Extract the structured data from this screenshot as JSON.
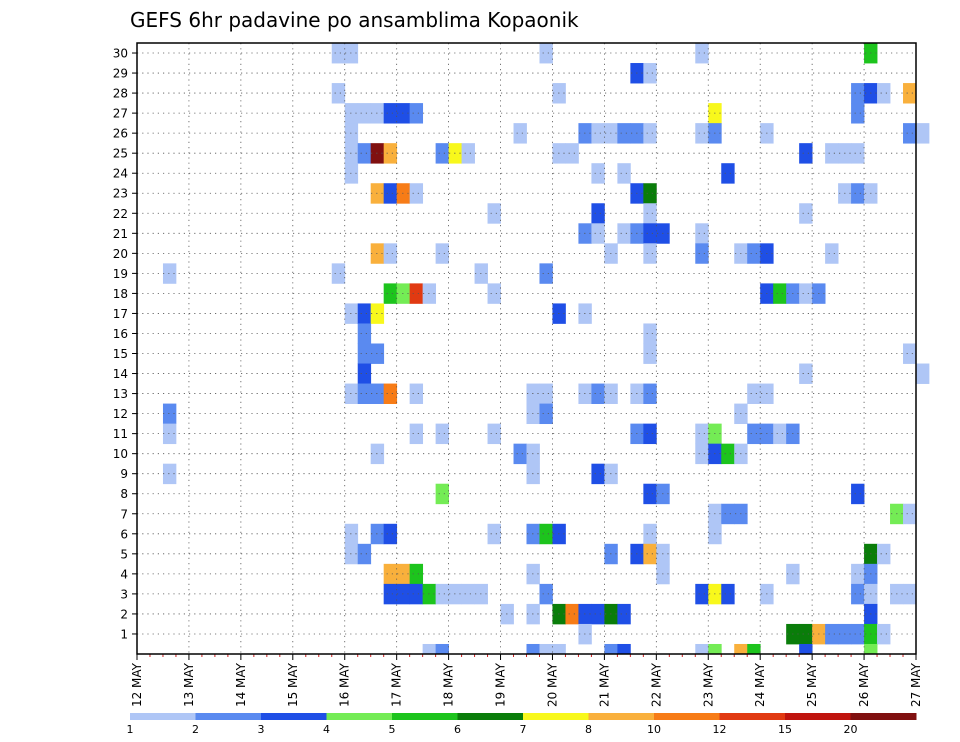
{
  "chart_data": {
    "type": "heatmap",
    "title": "GEFS 6hr padavine po ansamblima Kopaonik",
    "xlabel": "",
    "ylabel": "",
    "x_ticks": [
      "12 MAY",
      "13 MAY",
      "14 MAY",
      "15 MAY",
      "16 MAY",
      "17 MAY",
      "18 MAY",
      "19 MAY",
      "20 MAY",
      "21 MAY",
      "22 MAY",
      "23 MAY",
      "24 MAY",
      "25 MAY",
      "26 MAY",
      "27 MAY"
    ],
    "y_ticks": [
      1,
      2,
      3,
      4,
      5,
      6,
      7,
      8,
      9,
      10,
      11,
      12,
      13,
      14,
      15,
      16,
      17,
      18,
      19,
      20,
      21,
      22,
      23,
      24,
      25,
      26,
      27,
      28,
      29,
      30
    ],
    "ylim": [
      0,
      30
    ],
    "time_steps_per_day": 4,
    "grid": true,
    "colorbar": {
      "position": "bottom",
      "labels": [
        "1",
        "2",
        "3",
        "4",
        "5",
        "6",
        "7",
        "8",
        "10",
        "12",
        "15",
        "20"
      ],
      "colors": [
        "#afc6f6",
        "#5a8af0",
        "#1f4fe6",
        "#74ec55",
        "#1dc41d",
        "#0a7d0a",
        "#f8f81c",
        "#f9b03c",
        "#f77c17",
        "#e13a12",
        "#c0140e",
        "#801010"
      ]
    },
    "levels": {
      "1": "#afc6f6",
      "2": "#5a8af0",
      "3": "#1f4fe6",
      "4": "#74ec55",
      "5": "#1dc41d",
      "6": "#0a7d0a",
      "7": "#f8f81c",
      "8": "#f9b03c",
      "10": "#f77c17",
      "12": "#e13a12",
      "15": "#c0140e",
      "20": "#801010"
    },
    "cells": [
      {
        "t": 15,
        "m": 30,
        "v": 1
      },
      {
        "t": 16,
        "m": 30,
        "v": 1
      },
      {
        "t": 31,
        "m": 30,
        "v": 1
      },
      {
        "t": 43,
        "m": 30,
        "v": 1
      },
      {
        "t": 56,
        "m": 30,
        "v": 5
      },
      {
        "t": 38,
        "m": 29,
        "v": 3
      },
      {
        "t": 39,
        "m": 29,
        "v": 1
      },
      {
        "t": 15,
        "m": 28,
        "v": 1
      },
      {
        "t": 32,
        "m": 28,
        "v": 1
      },
      {
        "t": 55,
        "m": 28,
        "v": 2
      },
      {
        "t": 56,
        "m": 28,
        "v": 3
      },
      {
        "t": 57,
        "m": 28,
        "v": 1
      },
      {
        "t": 59,
        "m": 28,
        "v": 8
      },
      {
        "t": 16,
        "m": 27,
        "v": 1
      },
      {
        "t": 17,
        "m": 27,
        "v": 1
      },
      {
        "t": 18,
        "m": 27,
        "v": 1
      },
      {
        "t": 19,
        "m": 27,
        "v": 3
      },
      {
        "t": 20,
        "m": 27,
        "v": 3
      },
      {
        "t": 21,
        "m": 27,
        "v": 2
      },
      {
        "t": 44,
        "m": 27,
        "v": 7
      },
      {
        "t": 55,
        "m": 27,
        "v": 2
      },
      {
        "t": 16,
        "m": 26,
        "v": 1
      },
      {
        "t": 29,
        "m": 26,
        "v": 1
      },
      {
        "t": 34,
        "m": 26,
        "v": 2
      },
      {
        "t": 35,
        "m": 26,
        "v": 1
      },
      {
        "t": 36,
        "m": 26,
        "v": 1
      },
      {
        "t": 37,
        "m": 26,
        "v": 2
      },
      {
        "t": 38,
        "m": 26,
        "v": 2
      },
      {
        "t": 39,
        "m": 26,
        "v": 1
      },
      {
        "t": 43,
        "m": 26,
        "v": 1
      },
      {
        "t": 44,
        "m": 26,
        "v": 2
      },
      {
        "t": 48,
        "m": 26,
        "v": 1
      },
      {
        "t": 59,
        "m": 26,
        "v": 2
      },
      {
        "t": 60,
        "m": 26,
        "v": 1
      },
      {
        "t": 16,
        "m": 25,
        "v": 1
      },
      {
        "t": 17,
        "m": 25,
        "v": 2
      },
      {
        "t": 18,
        "m": 25,
        "v": 20
      },
      {
        "t": 19,
        "m": 25,
        "v": 8
      },
      {
        "t": 23,
        "m": 25,
        "v": 2
      },
      {
        "t": 24,
        "m": 25,
        "v": 7
      },
      {
        "t": 25,
        "m": 25,
        "v": 1
      },
      {
        "t": 32,
        "m": 25,
        "v": 1
      },
      {
        "t": 33,
        "m": 25,
        "v": 1
      },
      {
        "t": 51,
        "m": 25,
        "v": 3
      },
      {
        "t": 53,
        "m": 25,
        "v": 1
      },
      {
        "t": 54,
        "m": 25,
        "v": 1
      },
      {
        "t": 55,
        "m": 25,
        "v": 1
      },
      {
        "t": 16,
        "m": 24,
        "v": 1
      },
      {
        "t": 35,
        "m": 24,
        "v": 1
      },
      {
        "t": 37,
        "m": 24,
        "v": 1
      },
      {
        "t": 45,
        "m": 24,
        "v": 3
      },
      {
        "t": 18,
        "m": 23,
        "v": 8
      },
      {
        "t": 19,
        "m": 23,
        "v": 3
      },
      {
        "t": 20,
        "m": 23,
        "v": 10
      },
      {
        "t": 21,
        "m": 23,
        "v": 1
      },
      {
        "t": 38,
        "m": 23,
        "v": 3
      },
      {
        "t": 39,
        "m": 23,
        "v": 6
      },
      {
        "t": 54,
        "m": 23,
        "v": 1
      },
      {
        "t": 55,
        "m": 23,
        "v": 2
      },
      {
        "t": 56,
        "m": 23,
        "v": 1
      },
      {
        "t": 27,
        "m": 22,
        "v": 1
      },
      {
        "t": 35,
        "m": 22,
        "v": 3
      },
      {
        "t": 39,
        "m": 22,
        "v": 1
      },
      {
        "t": 51,
        "m": 22,
        "v": 1
      },
      {
        "t": 34,
        "m": 21,
        "v": 2
      },
      {
        "t": 35,
        "m": 21,
        "v": 1
      },
      {
        "t": 37,
        "m": 21,
        "v": 1
      },
      {
        "t": 38,
        "m": 21,
        "v": 2
      },
      {
        "t": 39,
        "m": 21,
        "v": 3
      },
      {
        "t": 40,
        "m": 21,
        "v": 3
      },
      {
        "t": 43,
        "m": 21,
        "v": 1
      },
      {
        "t": 18,
        "m": 20,
        "v": 8
      },
      {
        "t": 19,
        "m": 20,
        "v": 1
      },
      {
        "t": 23,
        "m": 20,
        "v": 1
      },
      {
        "t": 36,
        "m": 20,
        "v": 1
      },
      {
        "t": 39,
        "m": 20,
        "v": 1
      },
      {
        "t": 43,
        "m": 20,
        "v": 2
      },
      {
        "t": 46,
        "m": 20,
        "v": 1
      },
      {
        "t": 47,
        "m": 20,
        "v": 2
      },
      {
        "t": 48,
        "m": 20,
        "v": 3
      },
      {
        "t": 53,
        "m": 20,
        "v": 1
      },
      {
        "t": 2,
        "m": 19,
        "v": 1
      },
      {
        "t": 15,
        "m": 19,
        "v": 1
      },
      {
        "t": 26,
        "m": 19,
        "v": 1
      },
      {
        "t": 31,
        "m": 19,
        "v": 2
      },
      {
        "t": 19,
        "m": 18,
        "v": 5
      },
      {
        "t": 20,
        "m": 18,
        "v": 4
      },
      {
        "t": 21,
        "m": 18,
        "v": 12
      },
      {
        "t": 22,
        "m": 18,
        "v": 1
      },
      {
        "t": 27,
        "m": 18,
        "v": 1
      },
      {
        "t": 48,
        "m": 18,
        "v": 3
      },
      {
        "t": 49,
        "m": 18,
        "v": 5
      },
      {
        "t": 50,
        "m": 18,
        "v": 2
      },
      {
        "t": 51,
        "m": 18,
        "v": 1
      },
      {
        "t": 52,
        "m": 18,
        "v": 2
      },
      {
        "t": 16,
        "m": 17,
        "v": 1
      },
      {
        "t": 17,
        "m": 17,
        "v": 3
      },
      {
        "t": 18,
        "m": 17,
        "v": 7
      },
      {
        "t": 32,
        "m": 17,
        "v": 3
      },
      {
        "t": 34,
        "m": 17,
        "v": 1
      },
      {
        "t": 17,
        "m": 16,
        "v": 2
      },
      {
        "t": 39,
        "m": 16,
        "v": 1
      },
      {
        "t": 17,
        "m": 15,
        "v": 2
      },
      {
        "t": 18,
        "m": 15,
        "v": 2
      },
      {
        "t": 39,
        "m": 15,
        "v": 1
      },
      {
        "t": 59,
        "m": 15,
        "v": 1
      },
      {
        "t": 17,
        "m": 14,
        "v": 3
      },
      {
        "t": 51,
        "m": 14,
        "v": 1
      },
      {
        "t": 60,
        "m": 14,
        "v": 1
      },
      {
        "t": 16,
        "m": 13,
        "v": 1
      },
      {
        "t": 17,
        "m": 13,
        "v": 2
      },
      {
        "t": 18,
        "m": 13,
        "v": 2
      },
      {
        "t": 19,
        "m": 13,
        "v": 10
      },
      {
        "t": 21,
        "m": 13,
        "v": 1
      },
      {
        "t": 30,
        "m": 13,
        "v": 1
      },
      {
        "t": 31,
        "m": 13,
        "v": 1
      },
      {
        "t": 34,
        "m": 13,
        "v": 1
      },
      {
        "t": 35,
        "m": 13,
        "v": 2
      },
      {
        "t": 36,
        "m": 13,
        "v": 1
      },
      {
        "t": 38,
        "m": 13,
        "v": 1
      },
      {
        "t": 39,
        "m": 13,
        "v": 2
      },
      {
        "t": 47,
        "m": 13,
        "v": 1
      },
      {
        "t": 48,
        "m": 13,
        "v": 1
      },
      {
        "t": 2,
        "m": 12,
        "v": 2
      },
      {
        "t": 30,
        "m": 12,
        "v": 1
      },
      {
        "t": 31,
        "m": 12,
        "v": 2
      },
      {
        "t": 46,
        "m": 12,
        "v": 1
      },
      {
        "t": 2,
        "m": 11,
        "v": 1
      },
      {
        "t": 21,
        "m": 11,
        "v": 1
      },
      {
        "t": 23,
        "m": 11,
        "v": 1
      },
      {
        "t": 27,
        "m": 11,
        "v": 1
      },
      {
        "t": 38,
        "m": 11,
        "v": 2
      },
      {
        "t": 39,
        "m": 11,
        "v": 3
      },
      {
        "t": 43,
        "m": 11,
        "v": 1
      },
      {
        "t": 44,
        "m": 11,
        "v": 4
      },
      {
        "t": 47,
        "m": 11,
        "v": 2
      },
      {
        "t": 48,
        "m": 11,
        "v": 2
      },
      {
        "t": 49,
        "m": 11,
        "v": 1
      },
      {
        "t": 50,
        "m": 11,
        "v": 2
      },
      {
        "t": 18,
        "m": 10,
        "v": 1
      },
      {
        "t": 29,
        "m": 10,
        "v": 2
      },
      {
        "t": 30,
        "m": 10,
        "v": 1
      },
      {
        "t": 43,
        "m": 10,
        "v": 1
      },
      {
        "t": 44,
        "m": 10,
        "v": 3
      },
      {
        "t": 45,
        "m": 10,
        "v": 5
      },
      {
        "t": 46,
        "m": 10,
        "v": 1
      },
      {
        "t": 2,
        "m": 9,
        "v": 1
      },
      {
        "t": 30,
        "m": 9,
        "v": 1
      },
      {
        "t": 35,
        "m": 9,
        "v": 3
      },
      {
        "t": 36,
        "m": 9,
        "v": 1
      },
      {
        "t": 23,
        "m": 8,
        "v": 4
      },
      {
        "t": 39,
        "m": 8,
        "v": 3
      },
      {
        "t": 40,
        "m": 8,
        "v": 2
      },
      {
        "t": 55,
        "m": 8,
        "v": 3
      },
      {
        "t": 44,
        "m": 7,
        "v": 1
      },
      {
        "t": 45,
        "m": 7,
        "v": 2
      },
      {
        "t": 46,
        "m": 7,
        "v": 2
      },
      {
        "t": 58,
        "m": 7,
        "v": 4
      },
      {
        "t": 59,
        "m": 7,
        "v": 1
      },
      {
        "t": 16,
        "m": 6,
        "v": 1
      },
      {
        "t": 18,
        "m": 6,
        "v": 2
      },
      {
        "t": 19,
        "m": 6,
        "v": 3
      },
      {
        "t": 27,
        "m": 6,
        "v": 1
      },
      {
        "t": 30,
        "m": 6,
        "v": 2
      },
      {
        "t": 31,
        "m": 6,
        "v": 5
      },
      {
        "t": 32,
        "m": 6,
        "v": 3
      },
      {
        "t": 39,
        "m": 6,
        "v": 1
      },
      {
        "t": 44,
        "m": 6,
        "v": 1
      },
      {
        "t": 16,
        "m": 5,
        "v": 1
      },
      {
        "t": 17,
        "m": 5,
        "v": 2
      },
      {
        "t": 36,
        "m": 5,
        "v": 2
      },
      {
        "t": 38,
        "m": 5,
        "v": 3
      },
      {
        "t": 39,
        "m": 5,
        "v": 8
      },
      {
        "t": 40,
        "m": 5,
        "v": 1
      },
      {
        "t": 56,
        "m": 5,
        "v": 6
      },
      {
        "t": 57,
        "m": 5,
        "v": 1
      },
      {
        "t": 19,
        "m": 4,
        "v": 8
      },
      {
        "t": 20,
        "m": 4,
        "v": 8
      },
      {
        "t": 21,
        "m": 4,
        "v": 5
      },
      {
        "t": 30,
        "m": 4,
        "v": 1
      },
      {
        "t": 40,
        "m": 4,
        "v": 1
      },
      {
        "t": 50,
        "m": 4,
        "v": 1
      },
      {
        "t": 55,
        "m": 4,
        "v": 1
      },
      {
        "t": 56,
        "m": 4,
        "v": 2
      },
      {
        "t": 19,
        "m": 3,
        "v": 3
      },
      {
        "t": 20,
        "m": 3,
        "v": 3
      },
      {
        "t": 21,
        "m": 3,
        "v": 3
      },
      {
        "t": 22,
        "m": 3,
        "v": 5
      },
      {
        "t": 23,
        "m": 3,
        "v": 1
      },
      {
        "t": 24,
        "m": 3,
        "v": 1
      },
      {
        "t": 25,
        "m": 3,
        "v": 1
      },
      {
        "t": 26,
        "m": 3,
        "v": 1
      },
      {
        "t": 31,
        "m": 3,
        "v": 2
      },
      {
        "t": 43,
        "m": 3,
        "v": 3
      },
      {
        "t": 44,
        "m": 3,
        "v": 7
      },
      {
        "t": 45,
        "m": 3,
        "v": 3
      },
      {
        "t": 48,
        "m": 3,
        "v": 1
      },
      {
        "t": 55,
        "m": 3,
        "v": 2
      },
      {
        "t": 56,
        "m": 3,
        "v": 1
      },
      {
        "t": 58,
        "m": 3,
        "v": 1
      },
      {
        "t": 59,
        "m": 3,
        "v": 1
      },
      {
        "t": 28,
        "m": 2,
        "v": 1
      },
      {
        "t": 30,
        "m": 2,
        "v": 1
      },
      {
        "t": 32,
        "m": 2,
        "v": 6
      },
      {
        "t": 33,
        "m": 2,
        "v": 10
      },
      {
        "t": 34,
        "m": 2,
        "v": 3
      },
      {
        "t": 35,
        "m": 2,
        "v": 3
      },
      {
        "t": 36,
        "m": 2,
        "v": 6
      },
      {
        "t": 37,
        "m": 2,
        "v": 3
      },
      {
        "t": 56,
        "m": 2,
        "v": 3
      },
      {
        "t": 34,
        "m": 1,
        "v": 1
      },
      {
        "t": 50,
        "m": 1,
        "v": 6
      },
      {
        "t": 51,
        "m": 1,
        "v": 6
      },
      {
        "t": 52,
        "m": 1,
        "v": 8
      },
      {
        "t": 53,
        "m": 1,
        "v": 2
      },
      {
        "t": 54,
        "m": 1,
        "v": 2
      },
      {
        "t": 55,
        "m": 1,
        "v": 2
      },
      {
        "t": 56,
        "m": 1,
        "v": 5
      },
      {
        "t": 57,
        "m": 1,
        "v": 1
      },
      {
        "t": 22,
        "m": 0,
        "v": 1
      },
      {
        "t": 23,
        "m": 0,
        "v": 2
      },
      {
        "t": 30,
        "m": 0,
        "v": 2
      },
      {
        "t": 31,
        "m": 0,
        "v": 1
      },
      {
        "t": 32,
        "m": 0,
        "v": 1
      },
      {
        "t": 36,
        "m": 0,
        "v": 2
      },
      {
        "t": 37,
        "m": 0,
        "v": 3
      },
      {
        "t": 43,
        "m": 0,
        "v": 1
      },
      {
        "t": 44,
        "m": 0,
        "v": 4
      },
      {
        "t": 46,
        "m": 0,
        "v": 8
      },
      {
        "t": 47,
        "m": 0,
        "v": 5
      },
      {
        "t": 51,
        "m": 0,
        "v": 3
      },
      {
        "t": 56,
        "m": 0,
        "v": 4
      }
    ]
  }
}
